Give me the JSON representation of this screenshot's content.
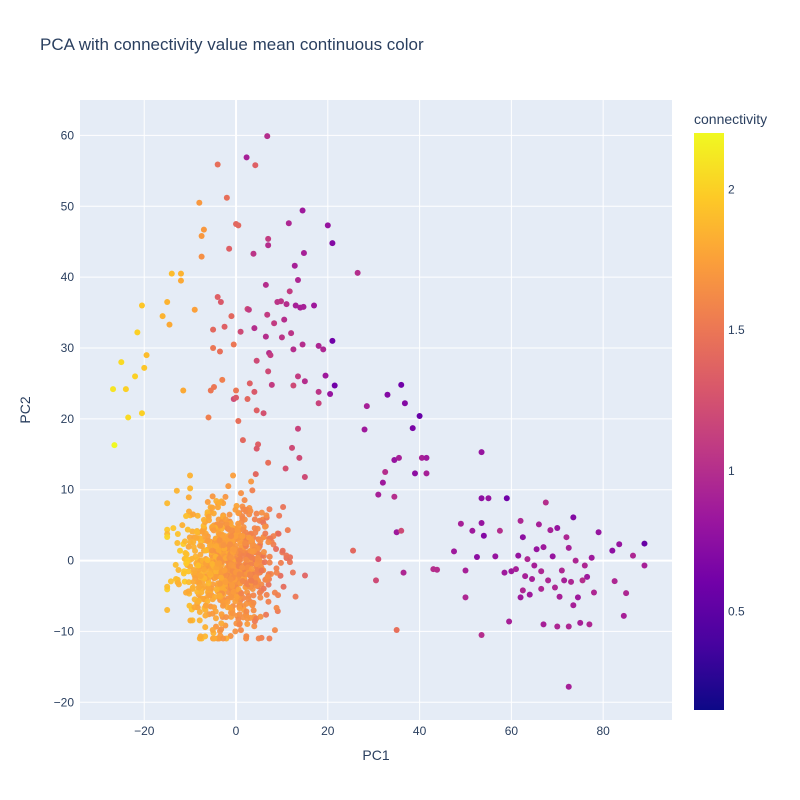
{
  "chart_data": {
    "type": "scatter",
    "title": "PCA with connectivity value mean continuous color",
    "xlabel": "PC1",
    "ylabel": "PC2",
    "xlim": [
      -34,
      95
    ],
    "ylim": [
      -22.5,
      65
    ],
    "xticks": [
      -20,
      0,
      20,
      40,
      60,
      80
    ],
    "yticks": [
      -20,
      -10,
      0,
      10,
      20,
      30,
      40,
      50,
      60
    ],
    "grid": true,
    "colorbar": {
      "title": "connectivity",
      "range": [
        0.15,
        2.2
      ],
      "ticks": [
        0.5,
        1,
        1.5,
        2
      ],
      "colorscale": "Plasma",
      "colors": [
        "#0d0887",
        "#46039f",
        "#7201a8",
        "#9c179e",
        "#bd3786",
        "#d8576b",
        "#ed7953",
        "#fb9f3a",
        "#fdca26",
        "#f0f921"
      ]
    },
    "marker_size": 6,
    "series": [
      {
        "points": [
          [
            -26.5,
            16.3,
            2.2
          ],
          [
            -26.8,
            24.2,
            2.1
          ],
          [
            -24,
            24.2,
            2.0
          ],
          [
            -25,
            28,
            2.05
          ],
          [
            -23.5,
            20.2,
            2.05
          ],
          [
            -22,
            26,
            2.0
          ],
          [
            -21.5,
            32.2,
            2.0
          ],
          [
            -20.5,
            36,
            1.95
          ],
          [
            -20.5,
            20.8,
            2.0
          ],
          [
            -20,
            27.2,
            1.95
          ],
          [
            -19.5,
            29,
            1.9
          ],
          [
            -16,
            34.5,
            1.85
          ],
          [
            -15,
            36.5,
            1.85
          ],
          [
            -14.5,
            33.3,
            1.8
          ],
          [
            -14,
            40.5,
            1.9
          ],
          [
            -12,
            40.5,
            1.85
          ],
          [
            -12,
            39.5,
            1.8
          ],
          [
            -11.5,
            24,
            1.8
          ],
          [
            -9,
            35.4,
            1.75
          ],
          [
            -8,
            50.5,
            1.7
          ],
          [
            -7.5,
            45.8,
            1.7
          ],
          [
            -7,
            46.7,
            1.7
          ],
          [
            -7.5,
            42.9,
            1.65
          ],
          [
            -4,
            55.9,
            1.45
          ],
          [
            -2,
            51.2,
            1.45
          ],
          [
            0,
            47.5,
            1.4
          ],
          [
            0.5,
            47.3,
            1.4
          ],
          [
            -1.5,
            44,
            1.35
          ],
          [
            -5,
            32.6,
            1.4
          ],
          [
            -4,
            37.2,
            1.35
          ],
          [
            -3.3,
            36.5,
            1.3
          ],
          [
            -5.5,
            24,
            1.5
          ],
          [
            -4.8,
            24.5,
            1.5
          ],
          [
            -3.5,
            29.5,
            1.45
          ],
          [
            -1,
            34.5,
            1.4
          ],
          [
            -0.5,
            30.5,
            1.5
          ],
          [
            -3,
            25.5,
            1.55
          ],
          [
            -2.5,
            33,
            1.35
          ],
          [
            0,
            24,
            1.5
          ],
          [
            -6,
            20.2,
            1.55
          ],
          [
            -5,
            30,
            1.5
          ],
          [
            -0.5,
            22.8,
            1.2
          ],
          [
            0.5,
            19.7,
            1.45
          ],
          [
            0,
            23,
            1.3
          ],
          [
            1,
            32.3,
            1.2
          ],
          [
            1.5,
            17,
            1.4
          ],
          [
            2.5,
            22.8,
            1.4
          ],
          [
            3,
            25,
            1.35
          ],
          [
            4,
            23.8,
            1.3
          ],
          [
            4.5,
            21.2,
            1.35
          ],
          [
            4.8,
            16.4,
            1.35
          ],
          [
            4.5,
            15.8,
            1.3
          ],
          [
            6,
            20.8,
            1.25
          ],
          [
            4.3,
            12.2,
            1.4
          ],
          [
            7,
            13.8,
            1.45
          ],
          [
            6.8,
            59.9,
            1.0
          ],
          [
            2.3,
            56.9,
            0.9
          ],
          [
            4.2,
            55.8,
            1.35
          ],
          [
            3.8,
            43.3,
            1.05
          ],
          [
            2.5,
            35.5,
            1.2
          ],
          [
            2.8,
            35.4,
            1.1
          ],
          [
            4,
            32.8,
            1.0
          ],
          [
            4.5,
            28.2,
            1.2
          ],
          [
            6.5,
            31.6,
            1.0
          ],
          [
            7,
            45.4,
            1.1
          ],
          [
            7,
            44.5,
            1.0
          ],
          [
            6.5,
            38.9,
            1.0
          ],
          [
            6.8,
            34.7,
            1.1
          ],
          [
            7.2,
            29.3,
            1.0
          ],
          [
            7.5,
            29,
            1.1
          ],
          [
            7,
            26.7,
            1.2
          ],
          [
            7.8,
            24.8,
            1.1
          ],
          [
            8.3,
            33.5,
            1.1
          ],
          [
            9,
            36.5,
            1.05
          ],
          [
            9.8,
            36.6,
            1.05
          ],
          [
            10,
            31.5,
            1.05
          ],
          [
            10.5,
            34,
            1.0
          ],
          [
            11,
            36.2,
            1.0
          ],
          [
            11.5,
            47.6,
            0.95
          ],
          [
            11.7,
            38,
            1.1
          ],
          [
            12,
            32.1,
            1.05
          ],
          [
            12.5,
            29.8,
            1.0
          ],
          [
            12.8,
            41.6,
            0.9
          ],
          [
            13,
            36,
            0.9
          ],
          [
            13.5,
            39.6,
            0.95
          ],
          [
            14,
            35.7,
            0.9
          ],
          [
            14.5,
            49.4,
            0.85
          ],
          [
            14.7,
            35.8,
            0.9
          ],
          [
            14.8,
            43.4,
            0.9
          ],
          [
            14.5,
            30.5,
            1.0
          ],
          [
            15,
            25.3,
            1.0
          ],
          [
            17,
            36,
            0.85
          ],
          [
            18,
            23.8,
            1.05
          ],
          [
            18,
            30.3,
            0.95
          ],
          [
            19,
            29.8,
            0.95
          ],
          [
            19.5,
            26.1,
            0.85
          ],
          [
            20,
            47.3,
            0.8
          ],
          [
            20.5,
            23.5,
            0.8
          ],
          [
            21,
            44.8,
            0.7
          ],
          [
            21,
            31,
            0.6
          ],
          [
            21.5,
            24.7,
            0.6
          ],
          [
            18,
            22.2,
            1.15
          ],
          [
            12.5,
            24.7,
            1.2
          ],
          [
            13.5,
            26,
            1.1
          ],
          [
            10.8,
            13,
            1.25
          ],
          [
            12.2,
            15.9,
            1.2
          ],
          [
            13.8,
            14.5,
            1.2
          ],
          [
            15,
            11.8,
            1.2
          ],
          [
            13.5,
            18.6,
            1.15
          ],
          [
            26.5,
            40.6,
            1.0
          ],
          [
            28,
            18.5,
            0.85
          ],
          [
            28.5,
            21.8,
            0.9
          ],
          [
            31,
            9.3,
            0.9
          ],
          [
            32,
            11,
            0.85
          ],
          [
            33,
            23.4,
            0.7
          ],
          [
            32.5,
            12.5,
            1.0
          ],
          [
            34.5,
            9,
            1.0
          ],
          [
            34.5,
            14.2,
            0.8
          ],
          [
            35,
            4,
            0.85
          ],
          [
            35.5,
            14.5,
            0.9
          ],
          [
            36,
            24.8,
            0.6
          ],
          [
            36.8,
            22.2,
            0.7
          ],
          [
            36.5,
            -1.7,
            0.95
          ],
          [
            38.5,
            18.7,
            0.65
          ],
          [
            39,
            12.3,
            0.75
          ],
          [
            40,
            20.4,
            0.55
          ],
          [
            40.5,
            14.5,
            0.9
          ],
          [
            41.5,
            14.5,
            0.85
          ],
          [
            41.5,
            12.3,
            0.9
          ],
          [
            43,
            -1.2,
            1.0
          ],
          [
            43.8,
            -1.3,
            1.0
          ],
          [
            47.5,
            1.3,
            0.85
          ],
          [
            49,
            5.2,
            0.9
          ],
          [
            50,
            -5.2,
            0.95
          ],
          [
            50,
            -1.4,
            0.9
          ],
          [
            51.5,
            4.2,
            0.85
          ],
          [
            52.5,
            0.5,
            0.75
          ],
          [
            53.5,
            5.3,
            0.8
          ],
          [
            53.5,
            15.3,
            0.8
          ],
          [
            53.5,
            8.8,
            0.75
          ],
          [
            53.5,
            -10.5,
            1.0
          ],
          [
            54,
            3.5,
            0.7
          ],
          [
            55,
            8.8,
            0.8
          ],
          [
            57.5,
            4.2,
            1.0
          ],
          [
            59,
            8.8,
            0.6
          ],
          [
            59.5,
            -8.6,
            0.9
          ],
          [
            60,
            -1.5,
            0.85
          ],
          [
            61,
            -1.2,
            0.9
          ],
          [
            61.5,
            0.7,
            0.8
          ],
          [
            62,
            5.6,
            0.95
          ],
          [
            62.5,
            3.3,
            0.75
          ],
          [
            62.5,
            -4.2,
            0.95
          ],
          [
            62,
            -5.2,
            0.85
          ],
          [
            63,
            -2.2,
            0.9
          ],
          [
            63.5,
            0.2,
            0.95
          ],
          [
            64,
            -4.8,
            0.85
          ],
          [
            65,
            -0.7,
            0.9
          ],
          [
            65.5,
            1.6,
            0.8
          ],
          [
            66,
            5.1,
            0.9
          ],
          [
            66.5,
            -4,
            0.95
          ],
          [
            67,
            1.9,
            0.85
          ],
          [
            67.5,
            8.2,
            1.0
          ],
          [
            68,
            -2.8,
            0.95
          ],
          [
            68.5,
            4.3,
            0.9
          ],
          [
            69,
            0.6,
            0.8
          ],
          [
            69.5,
            -3.8,
            0.95
          ],
          [
            70,
            4.6,
            0.8
          ],
          [
            70.5,
            -5.1,
            0.9
          ],
          [
            71,
            -1.4,
            0.95
          ],
          [
            71.5,
            -2.8,
            0.9
          ],
          [
            72,
            3.3,
            0.95
          ],
          [
            72.5,
            1.8,
            0.9
          ],
          [
            73,
            -3,
            0.95
          ],
          [
            73.5,
            -6.3,
            0.9
          ],
          [
            73.5,
            6.1,
            0.7
          ],
          [
            74,
            0,
            0.95
          ],
          [
            74.5,
            -5.2,
            0.85
          ],
          [
            75,
            -8.8,
            0.9
          ],
          [
            75.5,
            -2.8,
            1.0
          ],
          [
            76,
            -0.7,
            0.95
          ],
          [
            76.5,
            -2.3,
            0.85
          ],
          [
            77,
            -9,
            0.95
          ],
          [
            77.5,
            0.4,
            0.85
          ],
          [
            78,
            -4.5,
            0.95
          ],
          [
            79,
            4,
            0.8
          ],
          [
            82,
            1.4,
            0.75
          ],
          [
            82.5,
            -2.9,
            0.95
          ],
          [
            83.5,
            2.3,
            0.8
          ],
          [
            84.5,
            -7.8,
            0.9
          ],
          [
            85,
            -4.6,
            0.95
          ],
          [
            86.5,
            0.7,
            0.95
          ],
          [
            89,
            2.4,
            0.55
          ],
          [
            89,
            -0.7,
            0.9
          ],
          [
            67,
            -9,
            0.9
          ],
          [
            70,
            -9.3,
            0.95
          ],
          [
            72.5,
            -9.3,
            0.95
          ],
          [
            72.5,
            -17.8,
            0.9
          ],
          [
            56.5,
            0.6,
            0.8
          ],
          [
            58.5,
            -1.7,
            0.85
          ],
          [
            64.5,
            -2.6,
            0.9
          ],
          [
            66.5,
            -1.5,
            0.95
          ],
          [
            25.5,
            1.4,
            1.4
          ],
          [
            30.5,
            -2.8,
            1.2
          ],
          [
            31,
            0.2,
            1.2
          ],
          [
            36,
            4.2,
            1.2
          ],
          [
            35,
            -9.8,
            1.45
          ]
        ]
      }
    ]
  }
}
